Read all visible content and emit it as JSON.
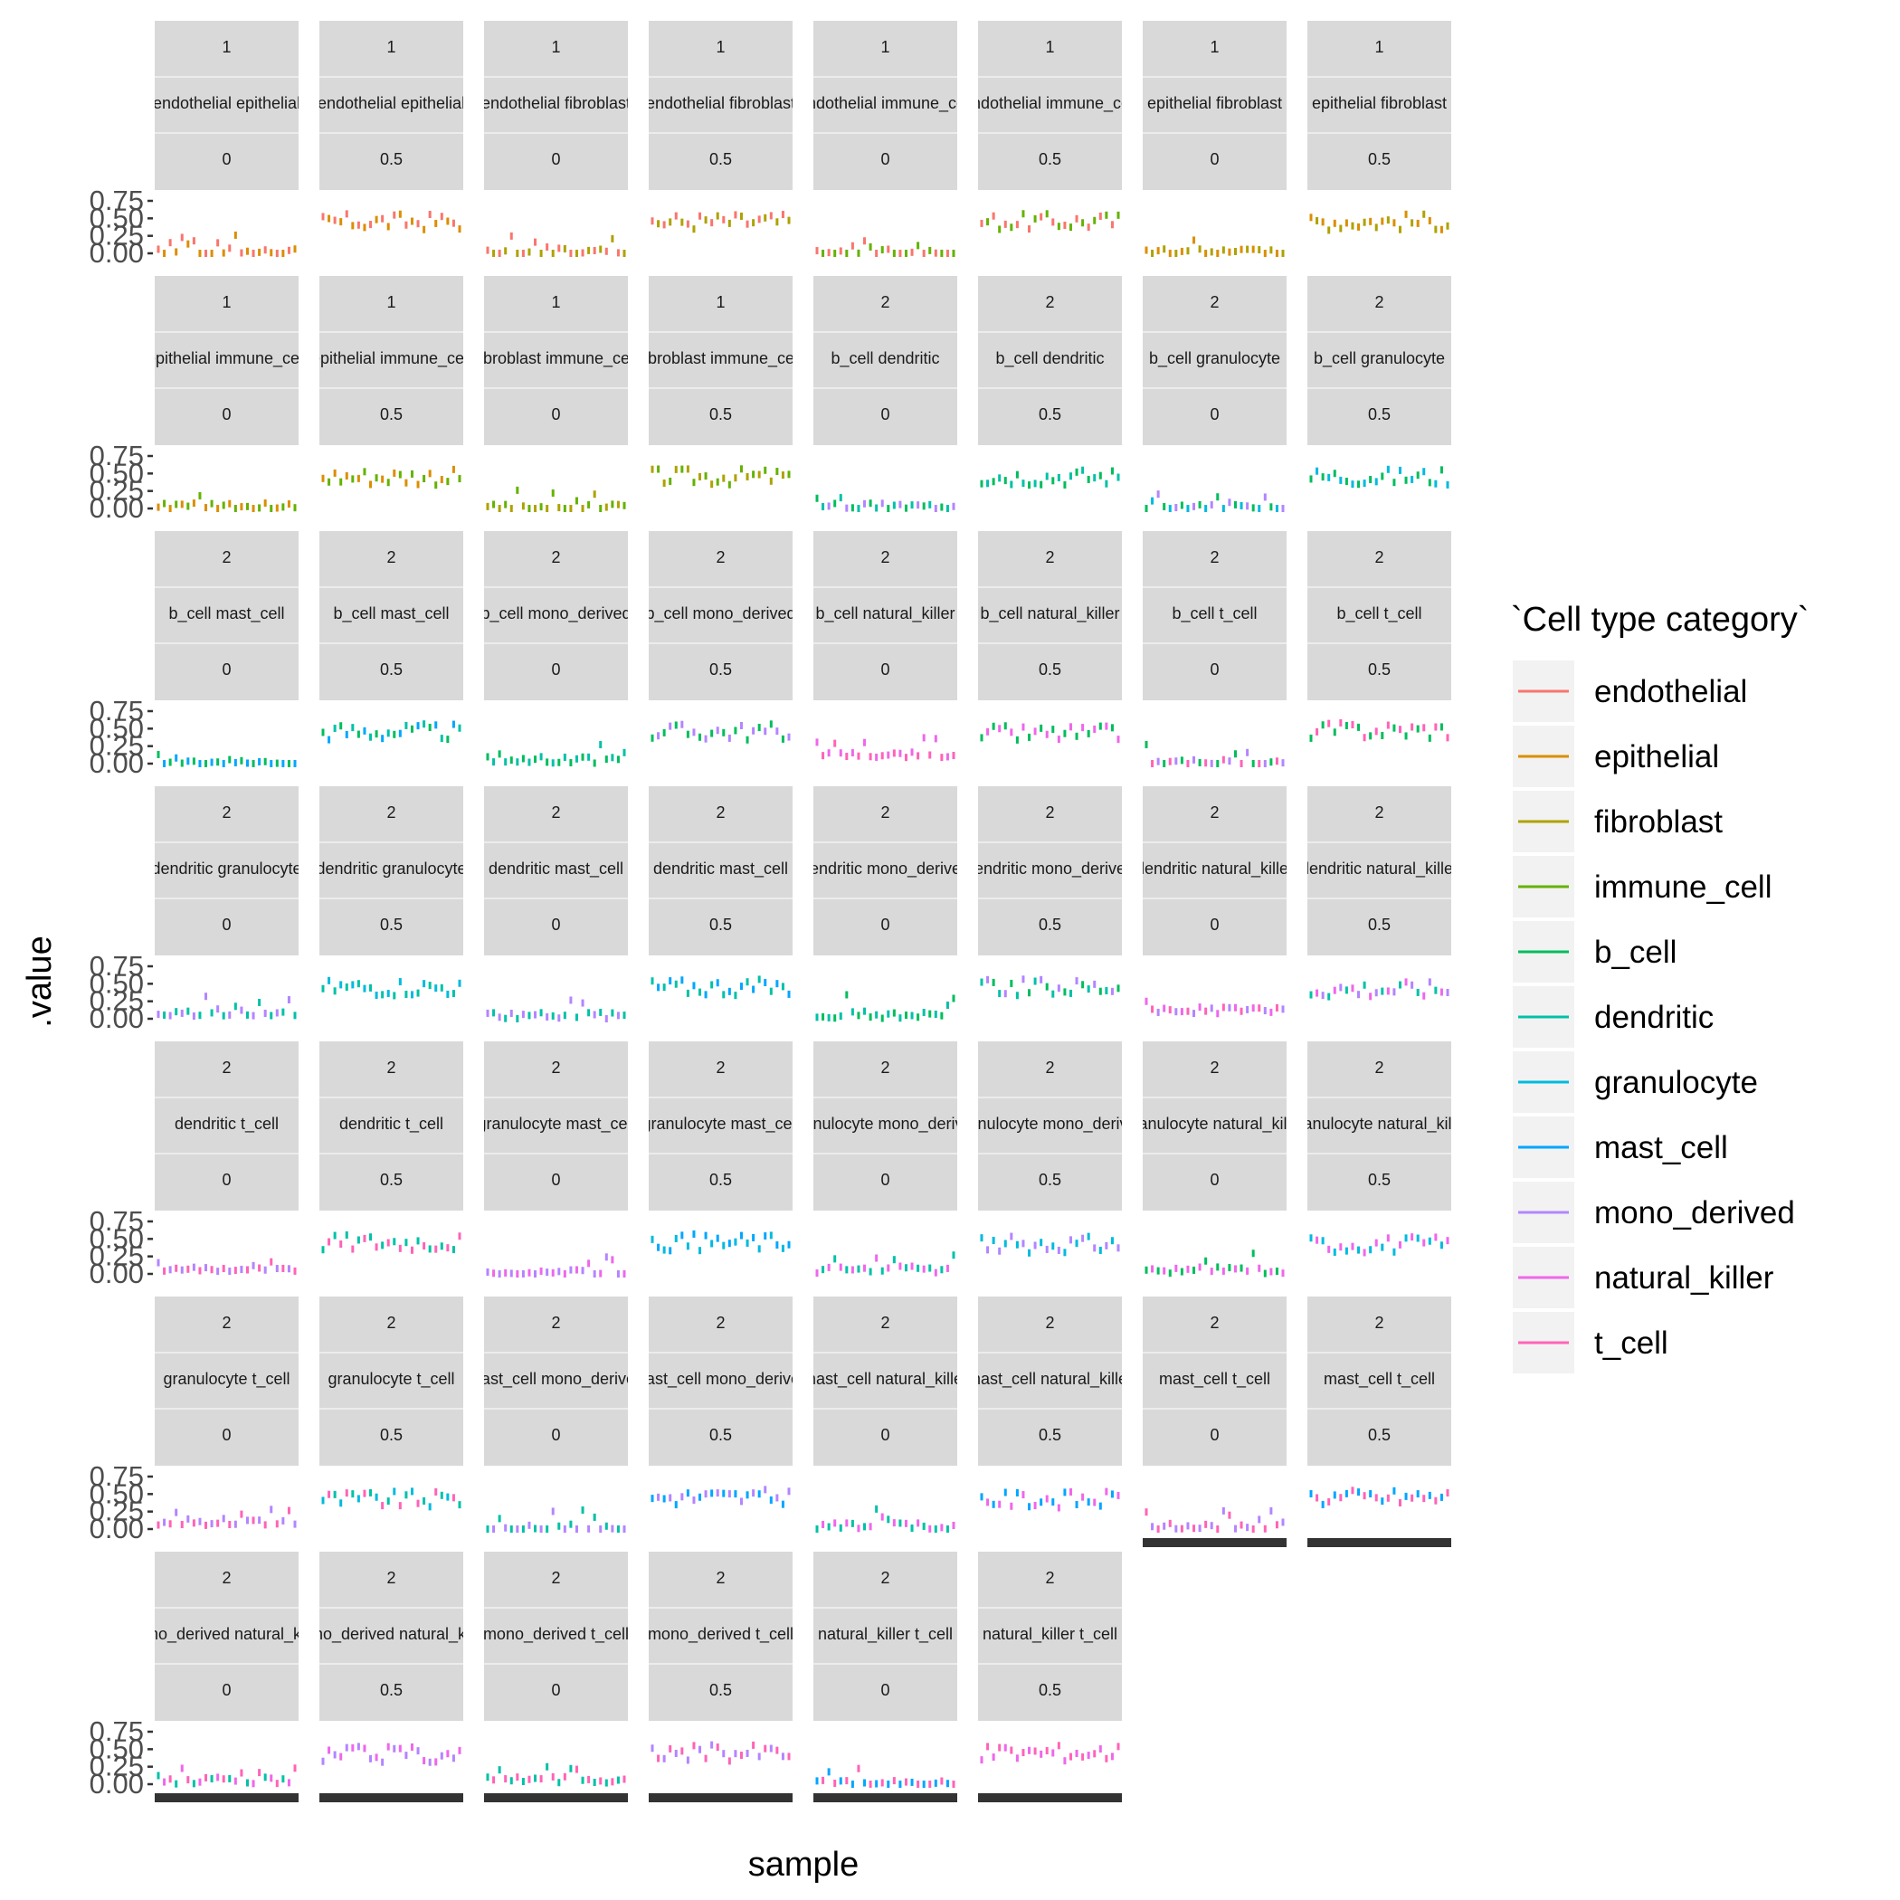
{
  "chart_data": {
    "type": "scatter",
    "title": "",
    "xlabel": "sample",
    "ylabel": ".value",
    "ylim": [
      0,
      0.75
    ],
    "yticks": [
      "0.00",
      "0.25",
      "0.50",
      "0.75"
    ],
    "legend": {
      "title": "`Cell type category`",
      "placement": "right",
      "entries": [
        "endothelial",
        "epithelial",
        "fibroblast",
        "immune_cell",
        "b_cell",
        "dendritic",
        "granulocyte",
        "mast_cell",
        "mono_derived",
        "natural_killer",
        "t_cell"
      ]
    },
    "colors": {
      "endothelial": "#F8766D",
      "epithelial": "#DB8E00",
      "fibroblast": "#AEA200",
      "immune_cell": "#64B200",
      "b_cell": "#00BD5C",
      "dendritic": "#00C1A7",
      "granulocyte": "#00BADE",
      "mast_cell": "#00A6FF",
      "mono_derived": "#B385FF",
      "natural_killer": "#EF67EB",
      "t_cell": "#FF63B6"
    },
    "facets": [
      {
        "level": "1",
        "pair": "endothelial epithelial",
        "prop": "0",
        "cats": [
          "endothelial",
          "epithelial"
        ],
        "mean": 0.02
      },
      {
        "level": "1",
        "pair": "endothelial epithelial",
        "prop": "0.5",
        "cats": [
          "endothelial",
          "epithelial"
        ],
        "mean": 0.45
      },
      {
        "level": "1",
        "pair": "endothelial fibroblast",
        "prop": "0",
        "cats": [
          "endothelial",
          "fibroblast"
        ],
        "mean": 0.02
      },
      {
        "level": "1",
        "pair": "endothelial fibroblast",
        "prop": "0.5",
        "cats": [
          "endothelial",
          "fibroblast"
        ],
        "mean": 0.45
      },
      {
        "level": "1",
        "pair": "endothelial immune_cell",
        "prop": "0",
        "cats": [
          "endothelial",
          "immune_cell"
        ],
        "mean": 0.01
      },
      {
        "level": "1",
        "pair": "endothelial immune_cell",
        "prop": "0.5",
        "cats": [
          "endothelial",
          "immune_cell"
        ],
        "mean": 0.45
      },
      {
        "level": "1",
        "pair": "epithelial fibroblast",
        "prop": "0",
        "cats": [
          "epithelial",
          "fibroblast"
        ],
        "mean": 0.02
      },
      {
        "level": "1",
        "pair": "epithelial fibroblast",
        "prop": "0.5",
        "cats": [
          "epithelial",
          "fibroblast"
        ],
        "mean": 0.45
      },
      {
        "level": "1",
        "pair": "epithelial immune_cell",
        "prop": "0",
        "cats": [
          "epithelial",
          "immune_cell"
        ],
        "mean": 0.03
      },
      {
        "level": "1",
        "pair": "epithelial immune_cell",
        "prop": "0.5",
        "cats": [
          "epithelial",
          "immune_cell"
        ],
        "mean": 0.45
      },
      {
        "level": "1",
        "pair": "fibroblast immune_cell",
        "prop": "0",
        "cats": [
          "fibroblast",
          "immune_cell"
        ],
        "mean": 0.01
      },
      {
        "level": "1",
        "pair": "fibroblast immune_cell",
        "prop": "0.5",
        "cats": [
          "fibroblast",
          "immune_cell"
        ],
        "mean": 0.45
      },
      {
        "level": "2",
        "pair": "b_cell dendritic",
        "prop": "0",
        "cats": [
          "b_cell",
          "dendritic",
          "mono_derived"
        ],
        "mean": 0.03
      },
      {
        "level": "2",
        "pair": "b_cell dendritic",
        "prop": "0.5",
        "cats": [
          "b_cell",
          "dendritic"
        ],
        "mean": 0.45
      },
      {
        "level": "2",
        "pair": "b_cell granulocyte",
        "prop": "0",
        "cats": [
          "b_cell",
          "granulocyte",
          "mono_derived"
        ],
        "mean": 0.01
      },
      {
        "level": "2",
        "pair": "b_cell granulocyte",
        "prop": "0.5",
        "cats": [
          "b_cell",
          "granulocyte"
        ],
        "mean": 0.45
      },
      {
        "level": "2",
        "pair": "b_cell mast_cell",
        "prop": "0",
        "cats": [
          "b_cell",
          "mast_cell"
        ],
        "mean": 0.01
      },
      {
        "level": "2",
        "pair": "b_cell mast_cell",
        "prop": "0.5",
        "cats": [
          "b_cell",
          "mast_cell",
          "dendritic"
        ],
        "mean": 0.45
      },
      {
        "level": "2",
        "pair": "b_cell mono_derived",
        "prop": "0",
        "cats": [
          "b_cell",
          "dendritic"
        ],
        "mean": 0.05
      },
      {
        "level": "2",
        "pair": "b_cell mono_derived",
        "prop": "0.5",
        "cats": [
          "b_cell",
          "mono_derived"
        ],
        "mean": 0.45
      },
      {
        "level": "2",
        "pair": "b_cell natural_killer",
        "prop": "0",
        "cats": [
          "natural_killer",
          "t_cell"
        ],
        "mean": 0.12
      },
      {
        "level": "2",
        "pair": "b_cell natural_killer",
        "prop": "0.5",
        "cats": [
          "b_cell",
          "natural_killer"
        ],
        "mean": 0.42
      },
      {
        "level": "2",
        "pair": "b_cell t_cell",
        "prop": "0",
        "cats": [
          "b_cell",
          "t_cell",
          "mono_derived"
        ],
        "mean": 0.01
      },
      {
        "level": "2",
        "pair": "b_cell t_cell",
        "prop": "0.5",
        "cats": [
          "b_cell",
          "t_cell"
        ],
        "mean": 0.47
      },
      {
        "level": "2",
        "pair": "dendritic granulocyte",
        "prop": "0",
        "cats": [
          "mono_derived",
          "dendritic"
        ],
        "mean": 0.08
      },
      {
        "level": "2",
        "pair": "dendritic granulocyte",
        "prop": "0.5",
        "cats": [
          "dendritic",
          "granulocyte"
        ],
        "mean": 0.45
      },
      {
        "level": "2",
        "pair": "dendritic mast_cell",
        "prop": "0",
        "cats": [
          "mono_derived",
          "dendritic"
        ],
        "mean": 0.04
      },
      {
        "level": "2",
        "pair": "dendritic mast_cell",
        "prop": "0.5",
        "cats": [
          "dendritic",
          "mast_cell"
        ],
        "mean": 0.45
      },
      {
        "level": "2",
        "pair": "dendritic mono_derived",
        "prop": "0",
        "cats": [
          "dendritic",
          "b_cell"
        ],
        "mean": 0.05
      },
      {
        "level": "2",
        "pair": "dendritic mono_derived",
        "prop": "0.5",
        "cats": [
          "dendritic",
          "mono_derived",
          "b_cell"
        ],
        "mean": 0.45
      },
      {
        "level": "2",
        "pair": "dendritic natural_killer",
        "prop": "0",
        "cats": [
          "natural_killer",
          "t_cell",
          "mono_derived"
        ],
        "mean": 0.12
      },
      {
        "level": "2",
        "pair": "dendritic natural_killer",
        "prop": "0.5",
        "cats": [
          "dendritic",
          "natural_killer",
          "mono_derived"
        ],
        "mean": 0.42
      },
      {
        "level": "2",
        "pair": "dendritic t_cell",
        "prop": "0",
        "cats": [
          "mono_derived",
          "t_cell"
        ],
        "mean": 0.08
      },
      {
        "level": "2",
        "pair": "dendritic t_cell",
        "prop": "0.5",
        "cats": [
          "dendritic",
          "t_cell"
        ],
        "mean": 0.45
      },
      {
        "level": "2",
        "pair": "granulocyte mast_cell",
        "prop": "0",
        "cats": [
          "mono_derived",
          "natural_killer"
        ],
        "mean": 0.01
      },
      {
        "level": "2",
        "pair": "granulocyte mast_cell",
        "prop": "0.5",
        "cats": [
          "granulocyte",
          "mast_cell"
        ],
        "mean": 0.45
      },
      {
        "level": "2",
        "pair": "granulocyte mono_derived",
        "prop": "0",
        "cats": [
          "natural_killer",
          "dendritic"
        ],
        "mean": 0.06
      },
      {
        "level": "2",
        "pair": "granulocyte mono_derived",
        "prop": "0.5",
        "cats": [
          "granulocyte",
          "mono_derived"
        ],
        "mean": 0.42
      },
      {
        "level": "2",
        "pair": "granulocyte natural_killer",
        "prop": "0",
        "cats": [
          "b_cell",
          "natural_killer"
        ],
        "mean": 0.05
      },
      {
        "level": "2",
        "pair": "granulocyte natural_killer",
        "prop": "0.5",
        "cats": [
          "granulocyte",
          "natural_killer"
        ],
        "mean": 0.42
      },
      {
        "level": "2",
        "pair": "granulocyte t_cell",
        "prop": "0",
        "cats": [
          "t_cell",
          "mono_derived"
        ],
        "mean": 0.1
      },
      {
        "level": "2",
        "pair": "granulocyte t_cell",
        "prop": "0.5",
        "cats": [
          "granulocyte",
          "t_cell",
          "dendritic"
        ],
        "mean": 0.42
      },
      {
        "level": "2",
        "pair": "mast_cell mono_derived",
        "prop": "0",
        "cats": [
          "dendritic",
          "mono_derived"
        ],
        "mean": 0.01
      },
      {
        "level": "2",
        "pair": "mast_cell mono_derived",
        "prop": "0.5",
        "cats": [
          "mast_cell",
          "mono_derived"
        ],
        "mean": 0.45
      },
      {
        "level": "2",
        "pair": "mast_cell natural_killer",
        "prop": "0",
        "cats": [
          "dendritic",
          "natural_killer"
        ],
        "mean": 0.04
      },
      {
        "level": "2",
        "pair": "mast_cell natural_killer",
        "prop": "0.5",
        "cats": [
          "mast_cell",
          "natural_killer"
        ],
        "mean": 0.42
      },
      {
        "level": "2",
        "pair": "mast_cell t_cell",
        "prop": "0",
        "cats": [
          "t_cell",
          "mono_derived"
        ],
        "mean": 0.03
      },
      {
        "level": "2",
        "pair": "mast_cell t_cell",
        "prop": "0.5",
        "cats": [
          "mast_cell",
          "t_cell"
        ],
        "mean": 0.45
      },
      {
        "level": "2",
        "pair": "mono_derived natural_killer",
        "prop": "0",
        "cats": [
          "dendritic",
          "natural_killer",
          "t_cell"
        ],
        "mean": 0.05
      },
      {
        "level": "2",
        "pair": "mono_derived natural_killer",
        "prop": "0.5",
        "cats": [
          "mono_derived",
          "natural_killer"
        ],
        "mean": 0.42
      },
      {
        "level": "2",
        "pair": "mono_derived t_cell",
        "prop": "0",
        "cats": [
          "dendritic",
          "t_cell"
        ],
        "mean": 0.06
      },
      {
        "level": "2",
        "pair": "mono_derived t_cell",
        "prop": "0.5",
        "cats": [
          "mono_derived",
          "t_cell"
        ],
        "mean": 0.45
      },
      {
        "level": "2",
        "pair": "natural_killer t_cell",
        "prop": "0",
        "cats": [
          "mast_cell",
          "t_cell"
        ],
        "mean": 0.01
      },
      {
        "level": "2",
        "pair": "natural_killer t_cell",
        "prop": "0.5",
        "cats": [
          "natural_killer",
          "t_cell"
        ],
        "mean": 0.45
      }
    ]
  }
}
